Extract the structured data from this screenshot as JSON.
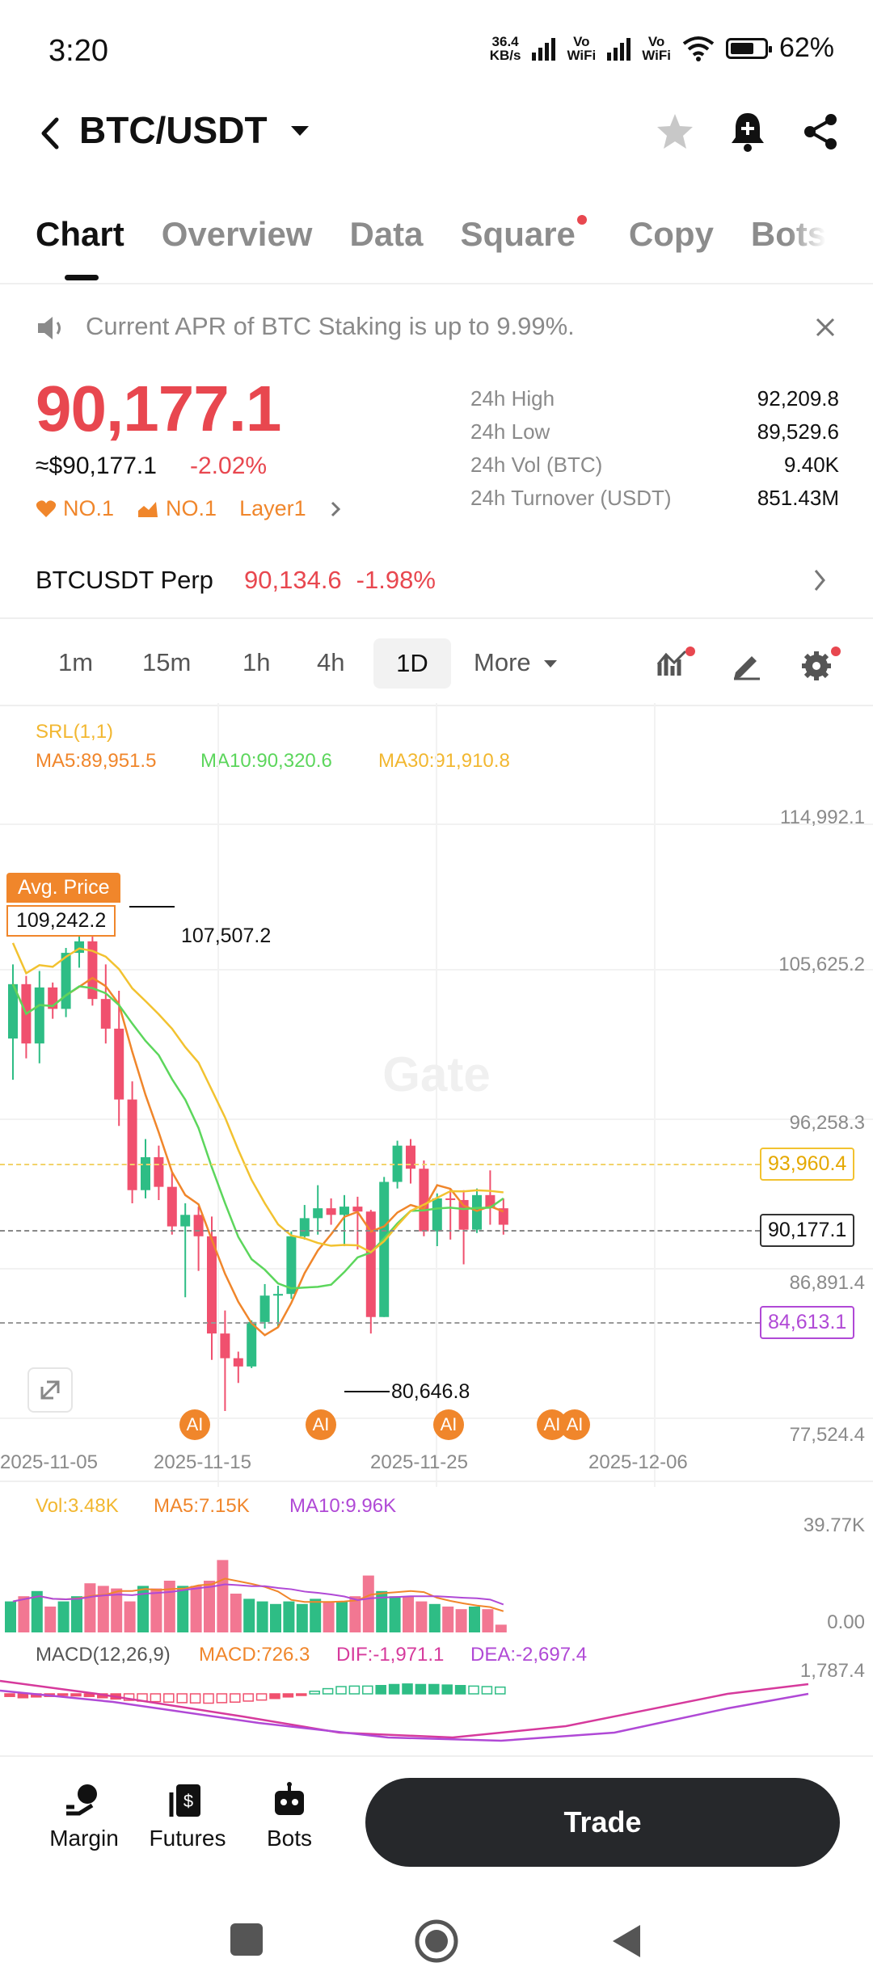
{
  "status": {
    "time": "3:20",
    "net_speed_top": "36.4",
    "net_speed_bottom": "KB/s",
    "sim1_top": "Vo",
    "sim1_bottom": "WiFi",
    "sim2_top": "Vo",
    "sim2_bottom": "WiFi",
    "battery": "62%"
  },
  "header": {
    "pair": "BTC/USDT"
  },
  "tabs": [
    {
      "label": "Chart",
      "active": true
    },
    {
      "label": "Overview"
    },
    {
      "label": "Data"
    },
    {
      "label": "Square",
      "dot": true
    },
    {
      "label": "Copy"
    },
    {
      "label": "Bots"
    }
  ],
  "announcement": {
    "text": "Current APR of BTC Staking is up to 9.99%."
  },
  "ticker": {
    "price": "90,177.1",
    "fiat_price": "≈$90,177.1",
    "change": "-2.02%",
    "tag1": "NO.1",
    "tag2": "NO.1",
    "tag3": "Layer1"
  },
  "stats": [
    {
      "label": "24h High",
      "value": "92,209.8"
    },
    {
      "label": "24h Low",
      "value": "89,529.6"
    },
    {
      "label": "24h Vol (BTC)",
      "value": "9.40K"
    },
    {
      "label": "24h Turnover (USDT)",
      "value": "851.43M"
    }
  ],
  "perp": {
    "label": "BTCUSDT Perp",
    "price": "90,134.6",
    "change": "-1.98%"
  },
  "intervals": [
    "1m",
    "15m",
    "1h",
    "4h",
    "1D",
    "More"
  ],
  "active_interval": "1D",
  "chart": {
    "srl": "SRL(1,1)",
    "ma5": "MA5:89,951.5",
    "ma10": "MA10:90,320.6",
    "ma30": "MA30:91,910.8",
    "avg_price_label": "Avg. Price",
    "avg_price": "109,242.2",
    "high_marker": "107,507.2",
    "low_marker": "80,646.8",
    "y_labels": [
      "114,992.1",
      "105,625.2",
      "96,258.3",
      "86,891.4",
      "77,524.4"
    ],
    "level_yellow": "93,960.4",
    "level_current": "90,177.1",
    "level_purple": "84,613.1",
    "x_labels": [
      "2025-11-05",
      "2025-11-15",
      "2025-11-25",
      "2025-12-06"
    ],
    "ai_label": "AI",
    "colors": {
      "up": "#2ebd85",
      "down": "#f0506e",
      "ma5": "#f0862b",
      "ma10": "#5cd65c",
      "ma30": "#f2c230"
    }
  },
  "volume": {
    "vol": "Vol:3.48K",
    "ma5": "MA5:7.15K",
    "ma10": "MA10:9.96K",
    "max": "39.77K",
    "zero": "0.00"
  },
  "macd": {
    "label": "MACD(12,26,9)",
    "macd": "MACD:726.3",
    "dif": "DIF:-1,971.1",
    "dea": "DEA:-2,697.4",
    "max": "1,787.4"
  },
  "bottom_nav": {
    "margin": "Margin",
    "futures": "Futures",
    "bots": "Bots",
    "trade": "Trade"
  }
}
